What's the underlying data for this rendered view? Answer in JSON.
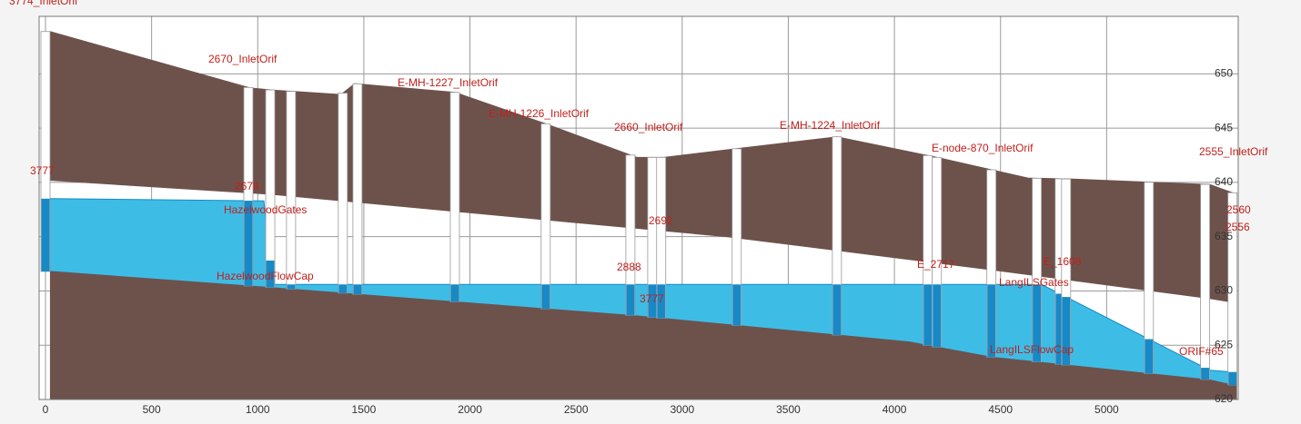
{
  "chart_data": {
    "type": "profile",
    "xlim": [
      -30,
      5620
    ],
    "ylim": [
      620,
      655.3
    ],
    "xticks": [
      0,
      500,
      1000,
      1500,
      2000,
      2500,
      3000,
      3500,
      4000,
      4500,
      5000
    ],
    "yticks": [
      620,
      625,
      630,
      635,
      640,
      645,
      650
    ],
    "grid": true,
    "ground": {
      "x": [
        21,
        964,
        1071,
        1393,
        1457,
        1929,
        2357,
        2786,
        2914,
        3257,
        3729,
        4200,
        4629,
        4843,
        5486,
        5614
      ],
      "y": [
        653.9,
        648.7,
        648.5,
        648.1,
        649.1,
        648.3,
        645.4,
        642.3,
        642.3,
        643.1,
        644.2,
        642.3,
        640.4,
        640.3,
        639.8,
        638.9
      ]
    },
    "crown": {
      "x": [
        21,
        1071,
        3214,
        4436,
        5486,
        5614
      ],
      "y": [
        640.2,
        638.9,
        635.0,
        632.0,
        629.3,
        628.9
      ]
    },
    "invert": {
      "x": [
        21,
        1071,
        2786,
        4071,
        4457,
        5486,
        5614
      ],
      "y": [
        631.8,
        630.3,
        627.7,
        625.3,
        623.9,
        621.8,
        621.25
      ]
    },
    "water": {
      "x": [
        21,
        1029,
        1071,
        4693,
        5486,
        5614
      ],
      "y": [
        638.5,
        638.3,
        630.6,
        630.6,
        622.7,
        622.5
      ]
    },
    "node_stations": [
      0,
      956,
      1059,
      1157,
      1401,
      1470,
      1929,
      2357,
      2756,
      2859,
      2901,
      3257,
      3729,
      4157,
      4200,
      4457,
      4671,
      4779,
      4809,
      5199,
      5464,
      5593
    ],
    "annotations": [
      "3774_InletOrif",
      "2670_InletOrif",
      "E-MH-1227_InletOrif",
      "E-MH-1226_InletOrif",
      "2660_InletOrif",
      "E-MH-1224_InletOrif",
      "E-node-870_InletOrif",
      "2555_InletOrif",
      "3777",
      "2678",
      "HazelwoodGates",
      "HazelwoodFlowCap",
      "2692",
      "2888",
      "3777",
      "E_2717",
      "E_1608",
      "LangILSGates",
      "LangILSFlowCap",
      "ORIF#65",
      "2560",
      "2556"
    ],
    "colors": {
      "soil": "#6d524c",
      "water": "#3dbde6",
      "shaft_water": "#1689c6",
      "shaft": "#ffffff",
      "grid": "#9a9a9a"
    }
  }
}
